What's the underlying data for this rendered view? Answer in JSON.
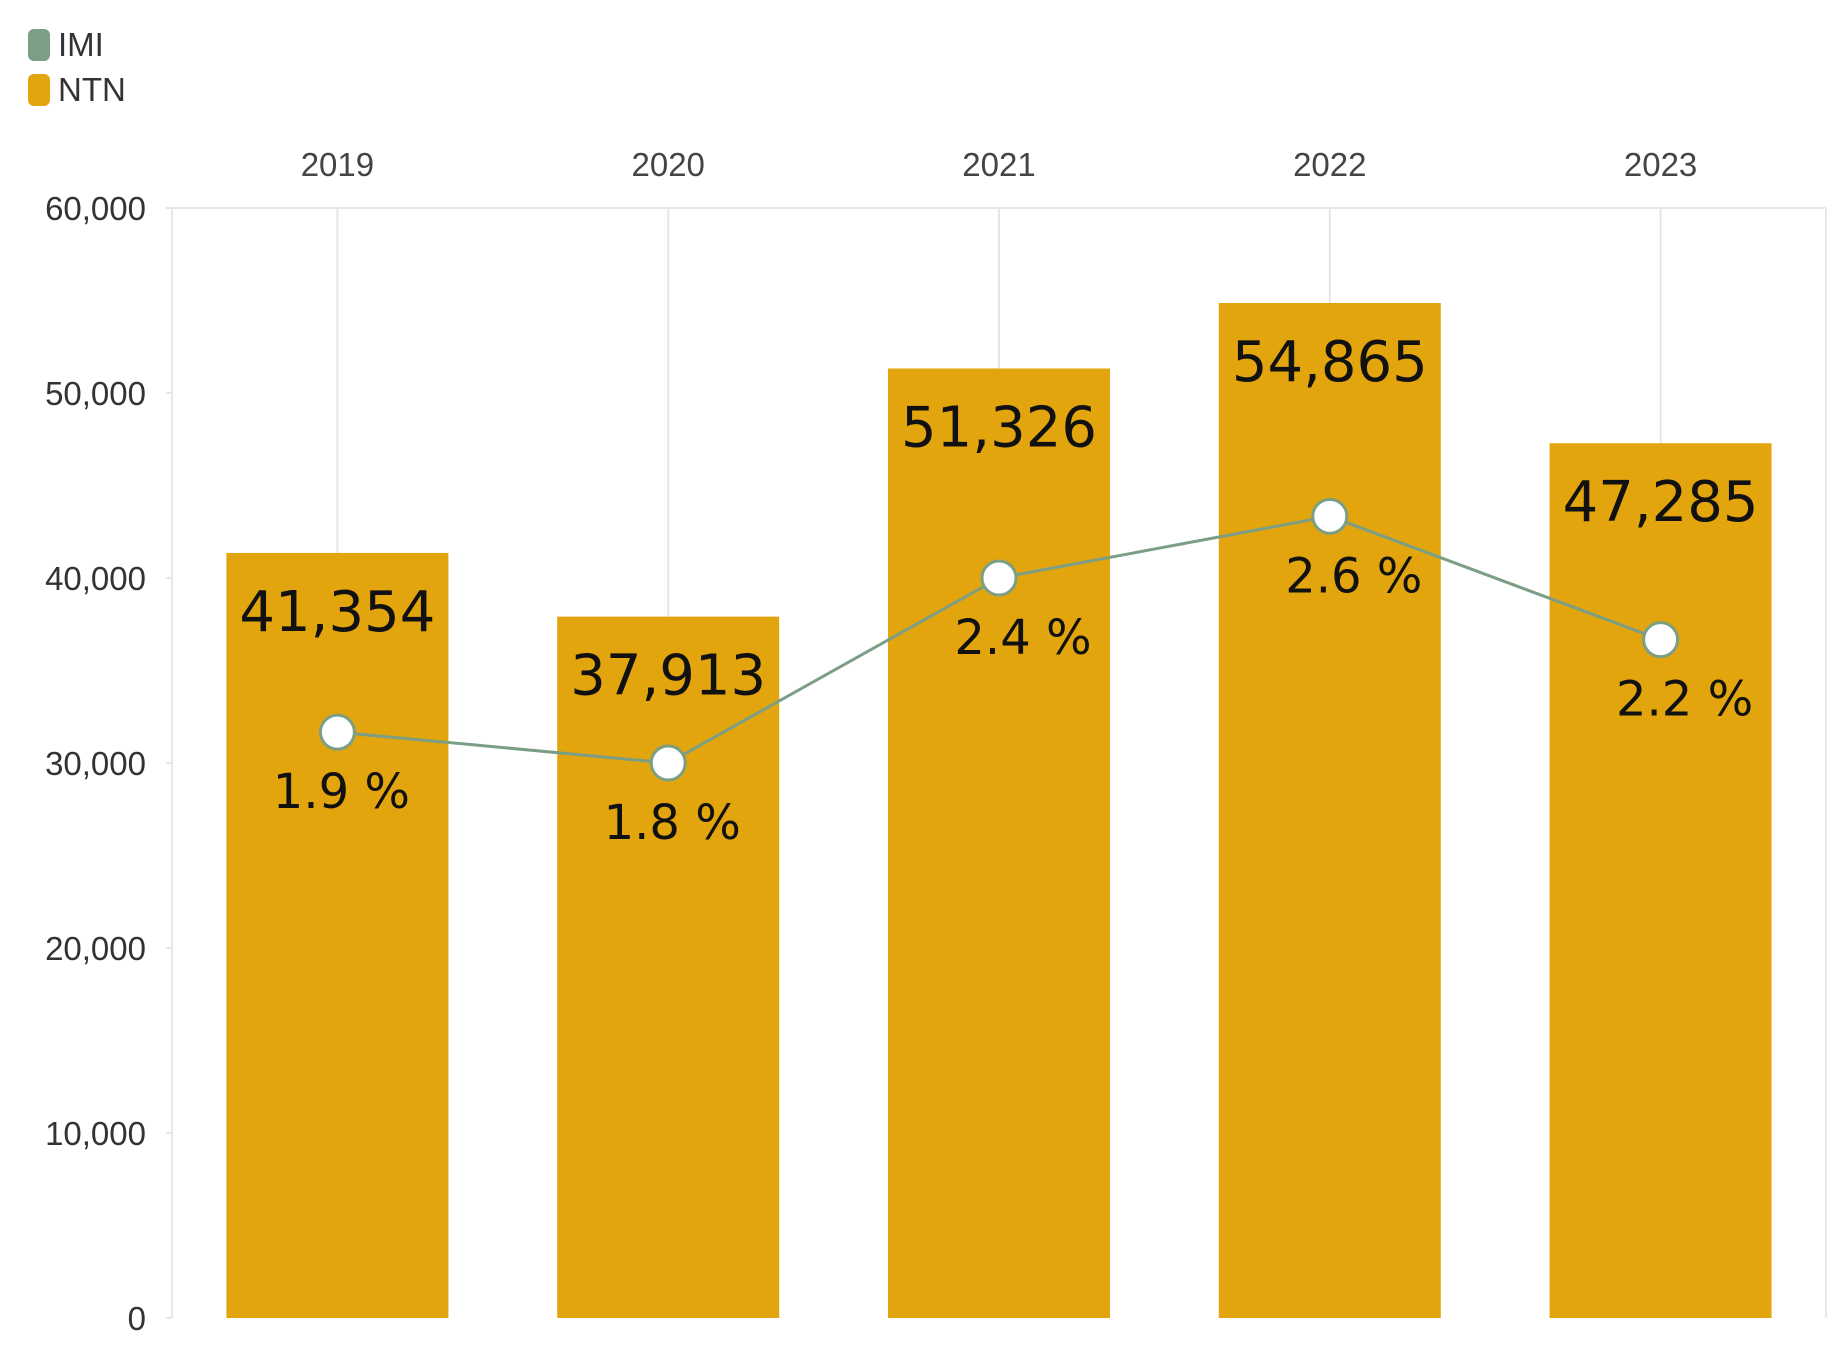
{
  "legend": [
    {
      "label": "IMI",
      "color": "#7b9e85"
    },
    {
      "label": "NTN",
      "color": "#e2a50d"
    }
  ],
  "chart_data": {
    "type": "bar",
    "categories": [
      "2019",
      "2020",
      "2021",
      "2022",
      "2023"
    ],
    "bar_series": {
      "name": "NTN",
      "color": "#e2a50d",
      "values": [
        41354,
        37913,
        51326,
        54865,
        47285
      ],
      "labels": [
        "41,354",
        "37,913",
        "51,326",
        "54,865",
        "47,285"
      ]
    },
    "line_series": {
      "name": "IMI",
      "color": "#7b9e85",
      "values": [
        1.9,
        1.8,
        2.4,
        2.6,
        2.2
      ],
      "labels": [
        "1.9 %",
        "1.8 %",
        "2.4 %",
        "2.6 %",
        "2.2 %"
      ],
      "secondary_axis_range": [
        0,
        3.6
      ]
    },
    "y_ticks": [
      "0",
      "10,000",
      "20,000",
      "30,000",
      "40,000",
      "50,000",
      "60,000"
    ],
    "ylim": [
      0,
      60000
    ],
    "xlabel": "",
    "ylabel": "",
    "x_axis_position": "top",
    "grid": "vertical"
  }
}
